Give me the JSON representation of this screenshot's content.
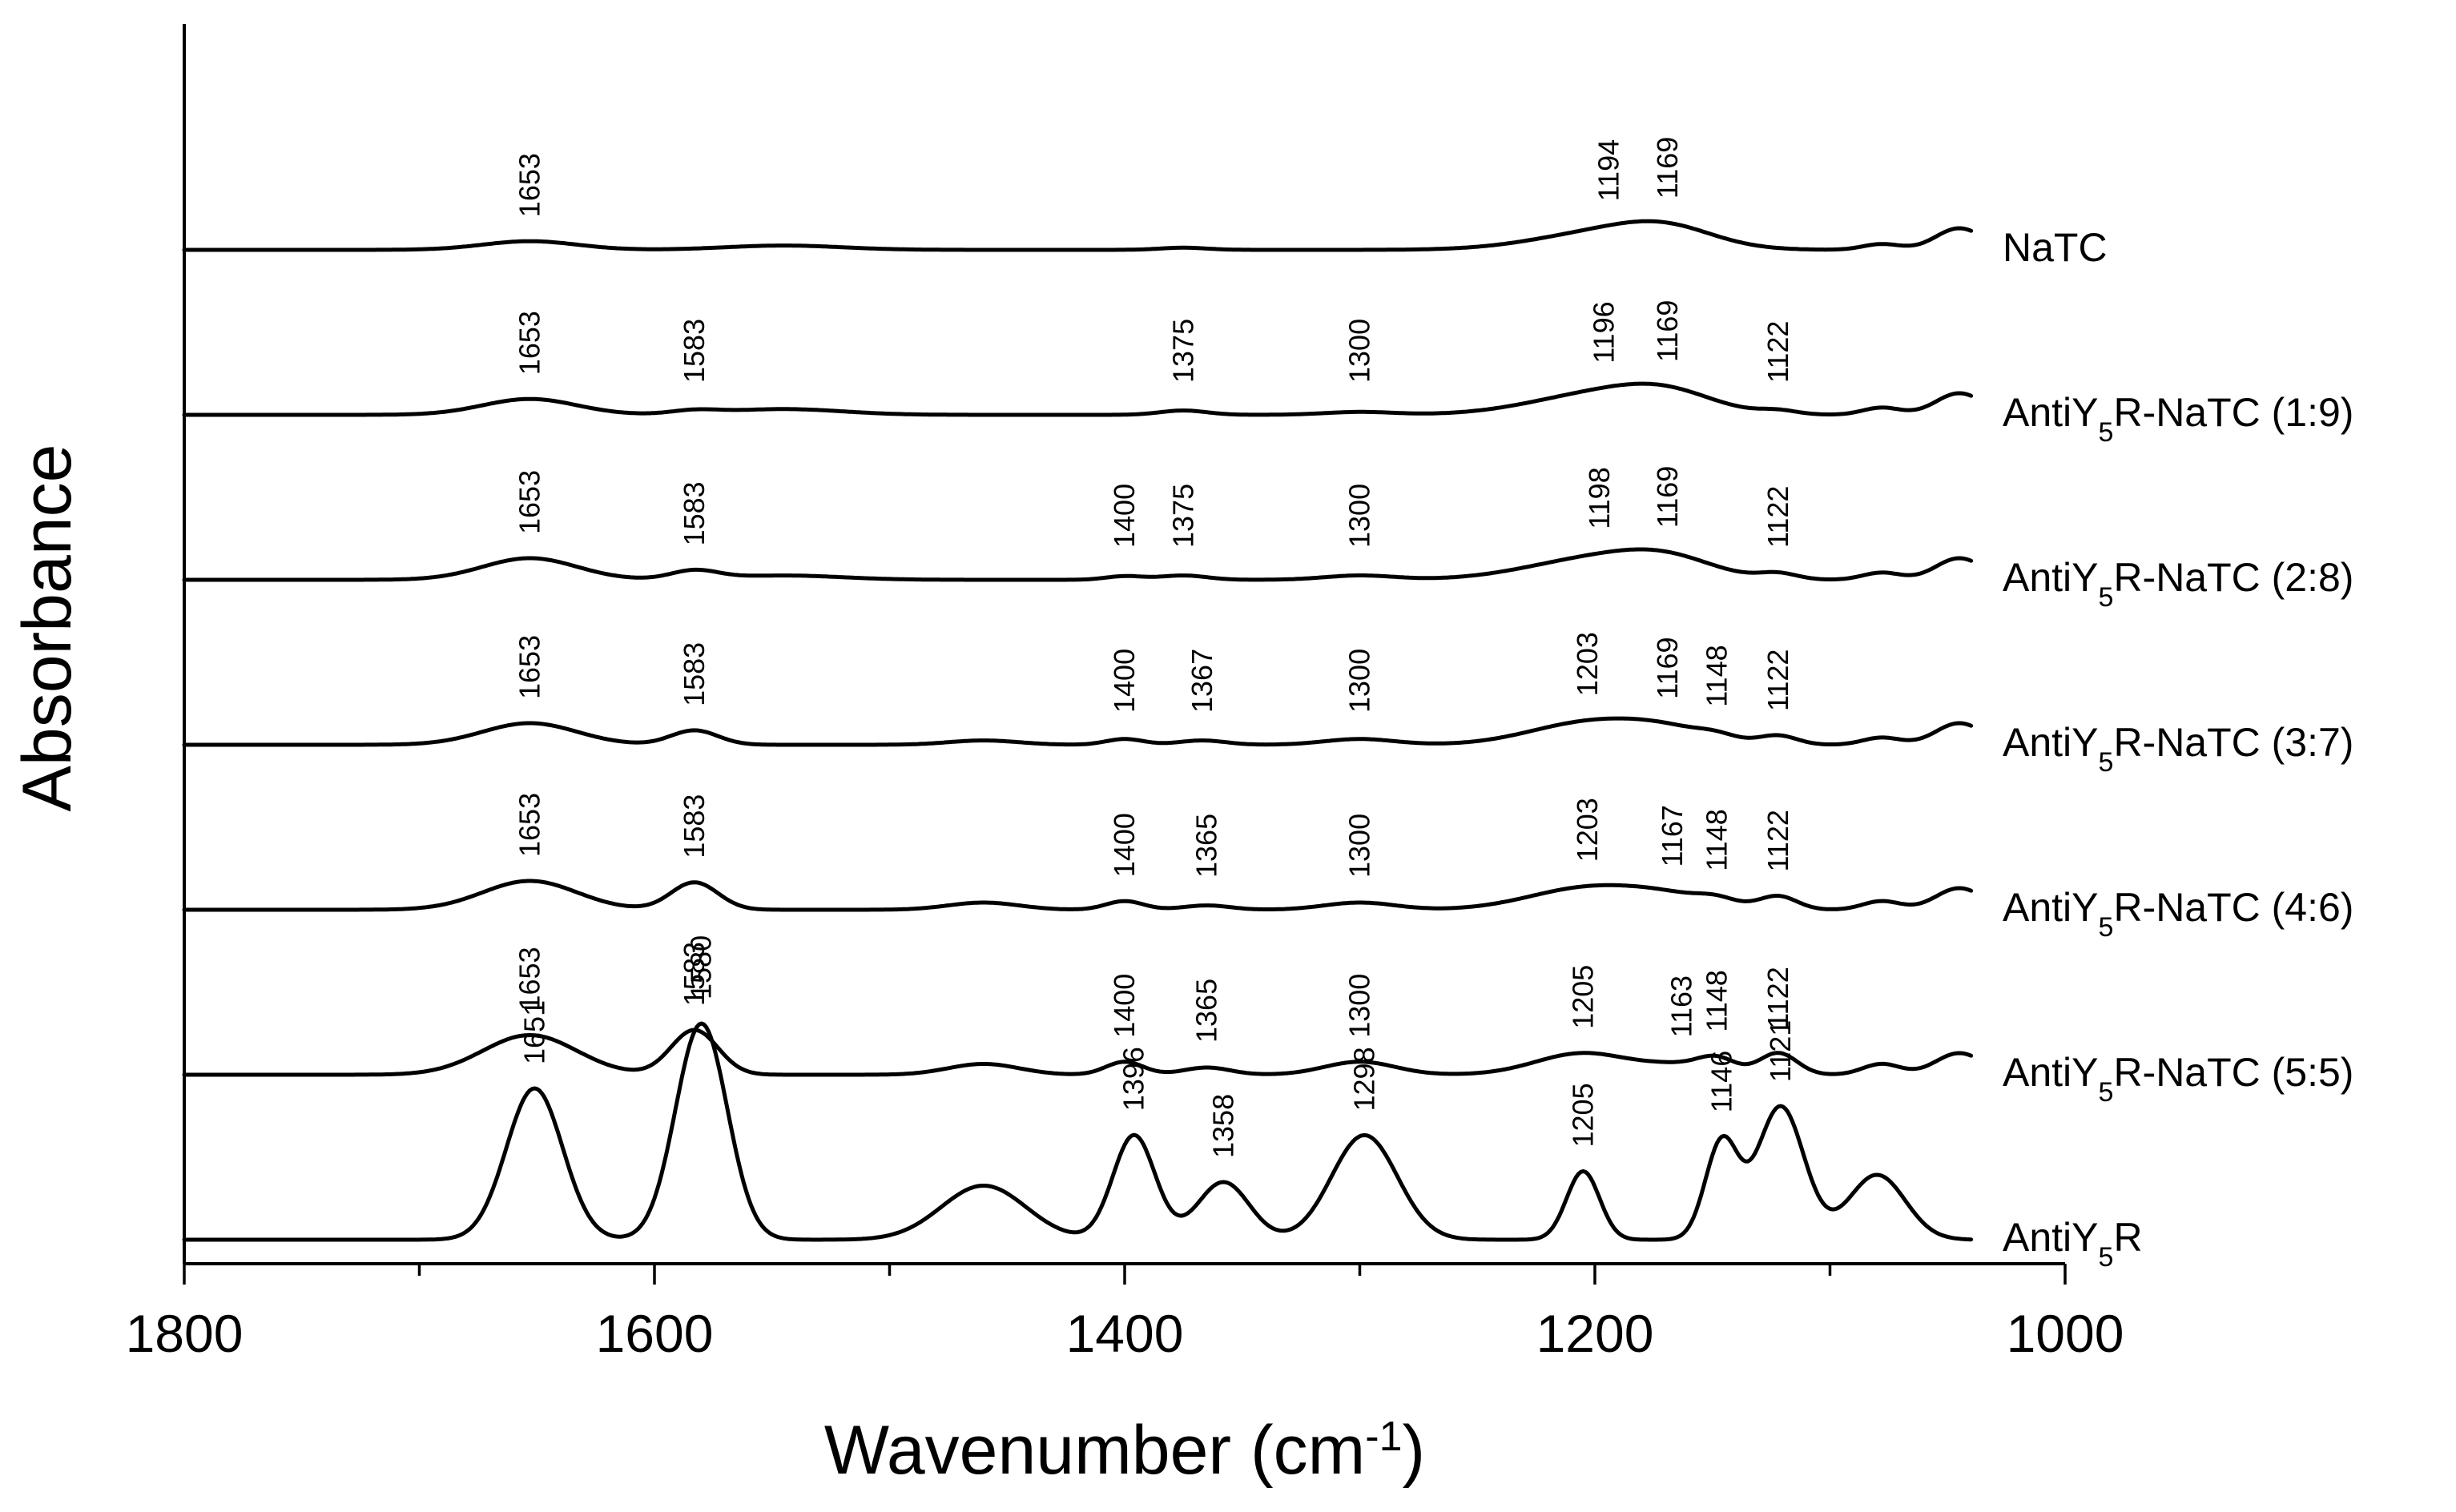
{
  "chart_data": {
    "type": "line",
    "xlabel": "Wavenumber (cm",
    "xlabel_sup": "-1",
    "xlabel_end": ")",
    "ylabel": "Absorbance",
    "xlim": [
      1800,
      1000
    ],
    "x_reversed": true,
    "x_major_ticks": [
      1800,
      1600,
      1400,
      1200,
      1000
    ],
    "x_minor_ticks": [
      1700,
      1500,
      1300,
      1100
    ],
    "x_tick_labels": [
      "1800",
      "1600",
      "1400",
      "1200",
      "1000"
    ],
    "x_range_plotted": [
      1800,
      1040
    ],
    "series": [
      {
        "name": "NaTC",
        "label_parts": [
          "NaTC"
        ],
        "baseline_offset": 6,
        "peaks": [
          {
            "x": 1653,
            "h": 0.12,
            "w": 20
          },
          {
            "x": 1545,
            "h": 0.06,
            "w": 25
          },
          {
            "x": 1375,
            "h": 0.03,
            "w": 10
          },
          {
            "x": 1194,
            "h": 0.25,
            "w": 30
          },
          {
            "x": 1169,
            "h": 0.2,
            "w": 20
          },
          {
            "x": 1078,
            "h": 0.08,
            "w": 8
          },
          {
            "x": 1045,
            "h": 0.3,
            "w": 10
          }
        ],
        "peak_labels": [
          1653,
          1194,
          1169
        ]
      },
      {
        "name": "AntiY5R-NaTC (1:9)",
        "label_parts": [
          "AntiY",
          "5",
          "R-NaTC  (1:9)"
        ],
        "baseline_offset": 5,
        "peaks": [
          {
            "x": 1653,
            "h": 0.22,
            "w": 20
          },
          {
            "x": 1583,
            "h": 0.05,
            "w": 10
          },
          {
            "x": 1545,
            "h": 0.08,
            "w": 25
          },
          {
            "x": 1375,
            "h": 0.06,
            "w": 10
          },
          {
            "x": 1300,
            "h": 0.04,
            "w": 15
          },
          {
            "x": 1196,
            "h": 0.3,
            "w": 30
          },
          {
            "x": 1169,
            "h": 0.2,
            "w": 20
          },
          {
            "x": 1122,
            "h": 0.05,
            "w": 8
          },
          {
            "x": 1078,
            "h": 0.1,
            "w": 8
          },
          {
            "x": 1045,
            "h": 0.3,
            "w": 10
          }
        ],
        "peak_labels": [
          1653,
          1583,
          1375,
          1300,
          1196,
          1169,
          1122
        ]
      },
      {
        "name": "AntiY5R-NaTC (2:8)",
        "label_parts": [
          "AntiY",
          "5",
          "R-NaTC  (2:8)"
        ],
        "baseline_offset": 4,
        "peaks": [
          {
            "x": 1653,
            "h": 0.3,
            "w": 20
          },
          {
            "x": 1583,
            "h": 0.12,
            "w": 10
          },
          {
            "x": 1545,
            "h": 0.06,
            "w": 25
          },
          {
            "x": 1400,
            "h": 0.05,
            "w": 8
          },
          {
            "x": 1375,
            "h": 0.06,
            "w": 10
          },
          {
            "x": 1300,
            "h": 0.06,
            "w": 15
          },
          {
            "x": 1198,
            "h": 0.3,
            "w": 30
          },
          {
            "x": 1169,
            "h": 0.2,
            "w": 20
          },
          {
            "x": 1122,
            "h": 0.08,
            "w": 8
          },
          {
            "x": 1078,
            "h": 0.1,
            "w": 8
          },
          {
            "x": 1045,
            "h": 0.3,
            "w": 10
          }
        ],
        "peak_labels": [
          1653,
          1583,
          1400,
          1375,
          1300,
          1198,
          1169,
          1122
        ]
      },
      {
        "name": "AntiY5R-NaTC (3:7)",
        "label_parts": [
          "AntiY",
          "5",
          "R-NaTC  (3:7)"
        ],
        "baseline_offset": 3,
        "peaks": [
          {
            "x": 1653,
            "h": 0.3,
            "w": 20
          },
          {
            "x": 1583,
            "h": 0.2,
            "w": 10
          },
          {
            "x": 1460,
            "h": 0.06,
            "w": 15
          },
          {
            "x": 1400,
            "h": 0.08,
            "w": 8
          },
          {
            "x": 1367,
            "h": 0.06,
            "w": 10
          },
          {
            "x": 1300,
            "h": 0.08,
            "w": 15
          },
          {
            "x": 1203,
            "h": 0.3,
            "w": 25
          },
          {
            "x": 1169,
            "h": 0.18,
            "w": 20
          },
          {
            "x": 1148,
            "h": 0.06,
            "w": 8
          },
          {
            "x": 1122,
            "h": 0.12,
            "w": 8
          },
          {
            "x": 1078,
            "h": 0.1,
            "w": 8
          },
          {
            "x": 1045,
            "h": 0.3,
            "w": 10
          }
        ],
        "peak_labels": [
          1653,
          1583,
          1400,
          1367,
          1300,
          1203,
          1169,
          1148,
          1122
        ]
      },
      {
        "name": "AntiY5R-NaTC (4:6)",
        "label_parts": [
          "AntiY",
          "5",
          "R-NaTC  (4:6)"
        ],
        "baseline_offset": 2,
        "peaks": [
          {
            "x": 1653,
            "h": 0.4,
            "w": 20
          },
          {
            "x": 1583,
            "h": 0.38,
            "w": 10
          },
          {
            "x": 1460,
            "h": 0.1,
            "w": 15
          },
          {
            "x": 1400,
            "h": 0.12,
            "w": 8
          },
          {
            "x": 1365,
            "h": 0.06,
            "w": 10
          },
          {
            "x": 1300,
            "h": 0.1,
            "w": 15
          },
          {
            "x": 1203,
            "h": 0.3,
            "w": 25
          },
          {
            "x": 1167,
            "h": 0.15,
            "w": 20
          },
          {
            "x": 1148,
            "h": 0.08,
            "w": 8
          },
          {
            "x": 1122,
            "h": 0.18,
            "w": 8
          },
          {
            "x": 1078,
            "h": 0.12,
            "w": 8
          },
          {
            "x": 1045,
            "h": 0.3,
            "w": 10
          }
        ],
        "peak_labels": [
          1653,
          1583,
          1400,
          1365,
          1300,
          1203,
          1167,
          1148,
          1122
        ]
      },
      {
        "name": "AntiY5R-NaTC (5:5)",
        "label_parts": [
          "AntiY",
          "5",
          "R-NaTC  (5:5)"
        ],
        "baseline_offset": 1,
        "peaks": [
          {
            "x": 1653,
            "h": 0.55,
            "w": 20
          },
          {
            "x": 1583,
            "h": 0.62,
            "w": 10
          },
          {
            "x": 1460,
            "h": 0.15,
            "w": 15
          },
          {
            "x": 1400,
            "h": 0.18,
            "w": 8
          },
          {
            "x": 1365,
            "h": 0.1,
            "w": 10
          },
          {
            "x": 1300,
            "h": 0.18,
            "w": 15
          },
          {
            "x": 1205,
            "h": 0.3,
            "w": 20
          },
          {
            "x": 1163,
            "h": 0.12,
            "w": 15
          },
          {
            "x": 1148,
            "h": 0.18,
            "w": 8
          },
          {
            "x": 1122,
            "h": 0.3,
            "w": 8
          },
          {
            "x": 1078,
            "h": 0.15,
            "w": 8
          },
          {
            "x": 1045,
            "h": 0.3,
            "w": 10
          }
        ],
        "peak_labels": [
          1653,
          1583,
          1400,
          1365,
          1300,
          1205,
          1163,
          1148,
          1122
        ]
      },
      {
        "name": "AntiY5R",
        "label_parts": [
          "AntiY",
          "5",
          "R"
        ],
        "baseline_offset": 0,
        "peaks": [
          {
            "x": 1651,
            "h": 2.1,
            "w": 12
          },
          {
            "x": 1580,
            "h": 3.0,
            "w": 11
          },
          {
            "x": 1460,
            "h": 0.75,
            "w": 18
          },
          {
            "x": 1396,
            "h": 1.45,
            "w": 9
          },
          {
            "x": 1358,
            "h": 0.8,
            "w": 11
          },
          {
            "x": 1298,
            "h": 1.45,
            "w": 14
          },
          {
            "x": 1205,
            "h": 0.95,
            "w": 7
          },
          {
            "x": 1146,
            "h": 1.35,
            "w": 7
          },
          {
            "x": 1121,
            "h": 1.85,
            "w": 10
          },
          {
            "x": 1080,
            "h": 0.9,
            "w": 12
          }
        ],
        "peak_labels": [
          1651,
          1580,
          1396,
          1358,
          1298,
          1205,
          1146,
          1121
        ]
      }
    ]
  }
}
